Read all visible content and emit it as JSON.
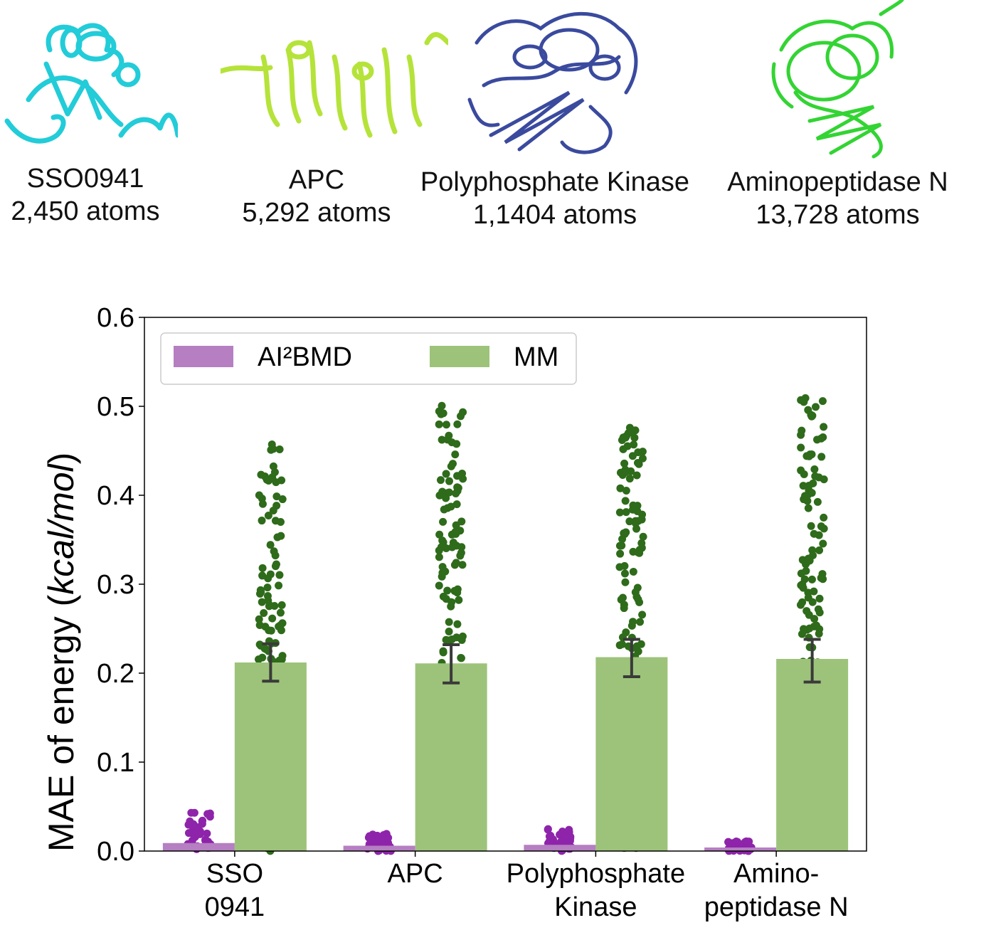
{
  "proteins": [
    {
      "name": "SSO0941",
      "atoms": "2,450 atoms",
      "color": "#22ccd8",
      "icon": "protein-structure-cyan"
    },
    {
      "name": "APC",
      "atoms": "5,292 atoms",
      "color": "#b5e33a",
      "icon": "protein-structure-lime"
    },
    {
      "name": "Polyphosphate Kinase",
      "atoms": "1,1404 atoms",
      "color": "#3a4a9e",
      "icon": "protein-structure-navy"
    },
    {
      "name": "Aminopeptidase N",
      "atoms": "13,728 atoms",
      "color": "#33d433",
      "icon": "protein-structure-green"
    }
  ],
  "chart_data": {
    "type": "bar",
    "ylabel": "MAE of energy (kcal/mol)",
    "ylabel_plain": "MAE of energy (",
    "ylabel_italic": "kcal/mol",
    "ylabel_close": ")",
    "ylim": [
      0,
      0.6
    ],
    "yticks": [
      "0.0",
      "0.1",
      "0.2",
      "0.3",
      "0.4",
      "0.5",
      "0.6"
    ],
    "legend_position": "top-left",
    "categories": [
      {
        "line1": "SSO",
        "line2": "0941"
      },
      {
        "line1": "APC",
        "line2": ""
      },
      {
        "line1": "Polyphosphate",
        "line2": "Kinase"
      },
      {
        "line1": "Amino-",
        "line2": "peptidase N"
      }
    ],
    "series": [
      {
        "name": "AI²BMD",
        "values": [
          0.009,
          0.006,
          0.007,
          0.004
        ],
        "bar_color": "#b57fc2",
        "point_color": "#8e24aa",
        "points_min": [
          0.0,
          0.0,
          0.0,
          0.0
        ],
        "points_max": [
          0.045,
          0.02,
          0.025,
          0.011
        ]
      },
      {
        "name": "MM",
        "values": [
          0.212,
          0.211,
          0.218,
          0.216
        ],
        "error": [
          [
            0.191,
            0.233
          ],
          [
            0.189,
            0.232
          ],
          [
            0.196,
            0.238
          ],
          [
            0.19,
            0.238
          ]
        ],
        "bar_color": "#9dc37a",
        "point_color": "#2e6b1a",
        "points_min": [
          0.0,
          0.0,
          0.0,
          0.0
        ],
        "points_max": [
          0.47,
          0.505,
          0.48,
          0.51
        ]
      }
    ]
  }
}
